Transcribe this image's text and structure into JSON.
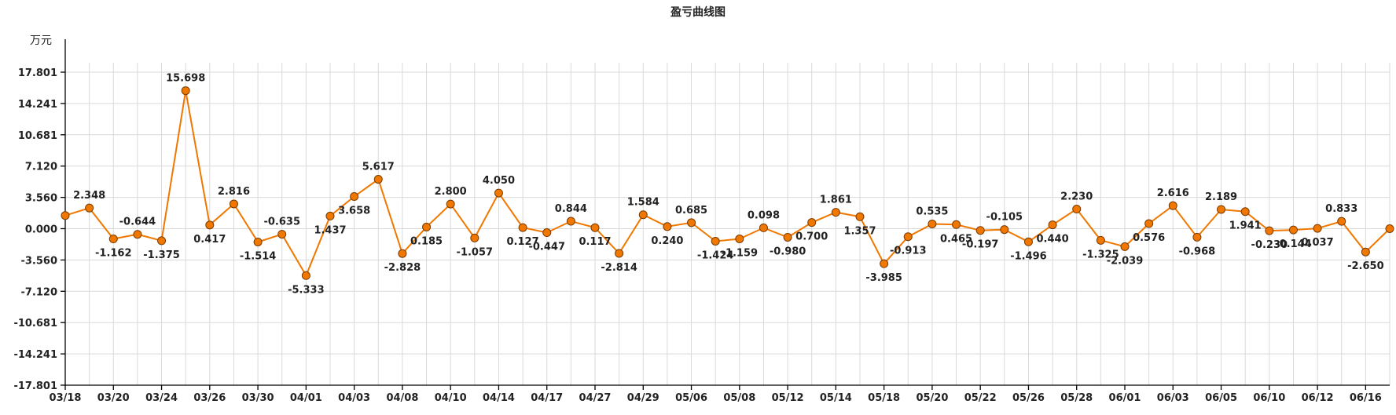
{
  "chart_data": {
    "type": "line",
    "title": "盈亏曲线图",
    "unit_label": "万元",
    "y_ticks": [
      "17.801",
      "14.241",
      "10.681",
      "7.120",
      "3.560",
      "0.000",
      "-3.560",
      "-7.120",
      "-10.681",
      "-14.241",
      "-17.801"
    ],
    "ylim": [
      -17.801,
      17.801
    ],
    "x_labels": [
      "03/18",
      "03/20",
      "03/24",
      "03/26",
      "03/30",
      "04/01",
      "04/03",
      "04/08",
      "04/10",
      "04/14",
      "04/17",
      "04/27",
      "04/29",
      "05/06",
      "05/08",
      "05/12",
      "05/14",
      "05/18",
      "05/20",
      "05/22",
      "05/26",
      "05/28",
      "06/01",
      "06/03",
      "06/05",
      "06/10",
      "06/12",
      "06/16"
    ],
    "series": [
      {
        "color": "#f07800",
        "values": [
          1.5,
          2.348,
          -1.162,
          -0.644,
          -1.375,
          15.698,
          0.417,
          2.816,
          -1.514,
          -0.635,
          -5.333,
          1.437,
          3.658,
          5.617,
          -2.828,
          0.185,
          2.8,
          -1.057,
          4.05,
          0.127,
          -0.447,
          0.844,
          0.117,
          -2.814,
          1.584,
          0.24,
          0.685,
          -1.424,
          -1.159,
          0.098,
          -0.98,
          0.7,
          1.861,
          1.357,
          -3.985,
          -0.913,
          0.535,
          0.465,
          -0.197,
          -0.105,
          -1.496,
          0.44,
          2.23,
          -1.325,
          -2.039,
          0.576,
          2.616,
          -0.968,
          2.189,
          1.941,
          -0.23,
          -0.144,
          0.037,
          0.833,
          -2.65,
          0.0
        ],
        "labels": [
          "",
          "2.348",
          "-1.162",
          "-0.644",
          "-1.375",
          "15.698",
          "0.417",
          "2.816",
          "-1.514",
          "-0.635",
          "-5.333",
          "1.437",
          "3.658",
          "5.617",
          "-2.828",
          "0.185",
          "2.800",
          "-1.057",
          "4.050",
          "0.127",
          "-0.447",
          "0.844",
          "0.117",
          "-2.814",
          "1.584",
          "0.240",
          "0.685",
          "-1.424",
          "-1.159",
          "0.098",
          "-0.980",
          "0.700",
          "1.861",
          "1.357",
          "-3.985",
          "-0.913",
          "0.535",
          "0.465",
          "-0.197",
          "-0.105",
          "-1.496",
          "0.440",
          "2.230",
          "-1.325",
          "-2.039",
          "0.576",
          "2.616",
          "-0.968",
          "2.189",
          "1.941",
          "-0.230",
          "-0.144",
          "0.037",
          "0.833",
          "-2.650",
          ""
        ]
      }
    ],
    "grid": true,
    "legend": false
  }
}
